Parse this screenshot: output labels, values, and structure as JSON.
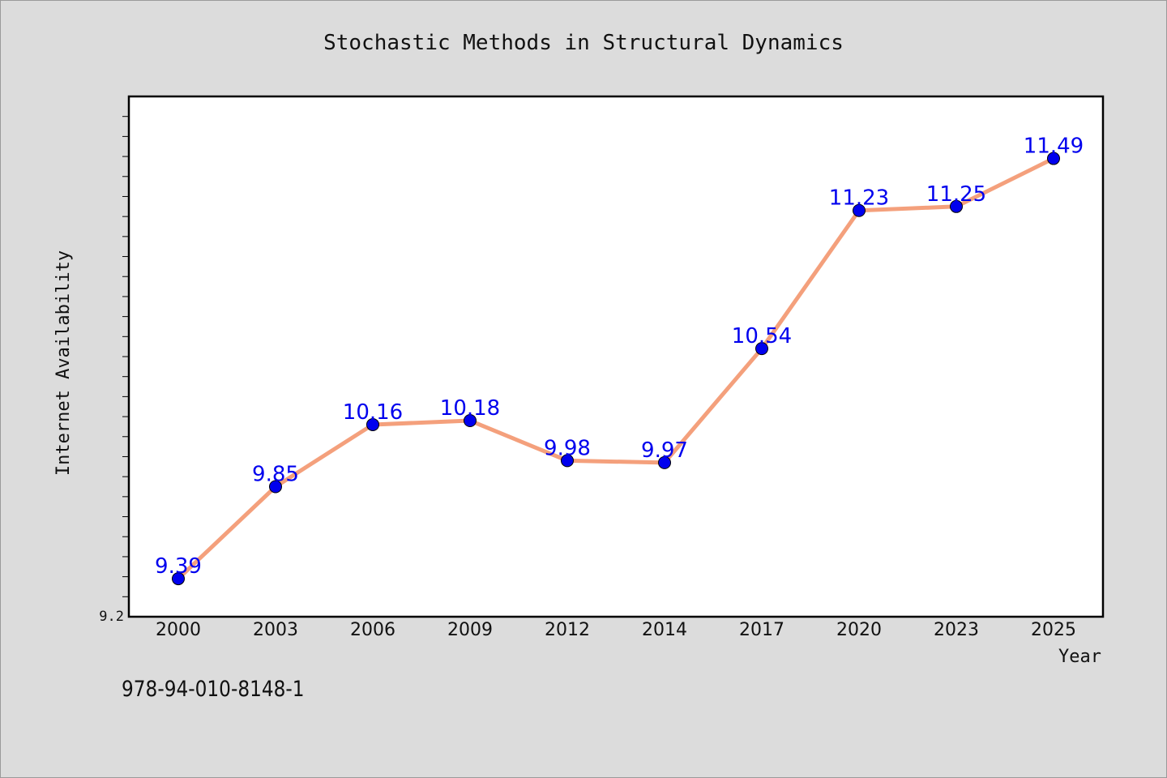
{
  "chart_data": {
    "type": "line",
    "title": "Stochastic Methods in Structural Dynamics",
    "xlabel": "Year",
    "ylabel": "Internet Availability",
    "categories": [
      "2000",
      "2003",
      "2006",
      "2009",
      "2012",
      "2014",
      "2017",
      "2020",
      "2023",
      "2025"
    ],
    "values": [
      9.39,
      9.85,
      10.16,
      10.18,
      9.98,
      9.97,
      10.54,
      11.23,
      11.25,
      11.49
    ],
    "data_labels": [
      "9.39",
      "9.85",
      "10.16",
      "10.18",
      "9.98",
      "9.97",
      "10.54",
      "11.23",
      "11.25",
      "11.49"
    ],
    "y_tick_label": "9.2",
    "ylim": [
      9.2,
      11.8
    ],
    "y_minor_tick_step": 0.1,
    "grid": false,
    "colors": {
      "line": "#f4a07c",
      "marker": "#0000ee",
      "data_label": "#0000ee",
      "plot_background": "#ffffff",
      "figure_background": "#dcdcdc"
    }
  },
  "footer": {
    "isbn": "978-94-010-8148-1"
  }
}
